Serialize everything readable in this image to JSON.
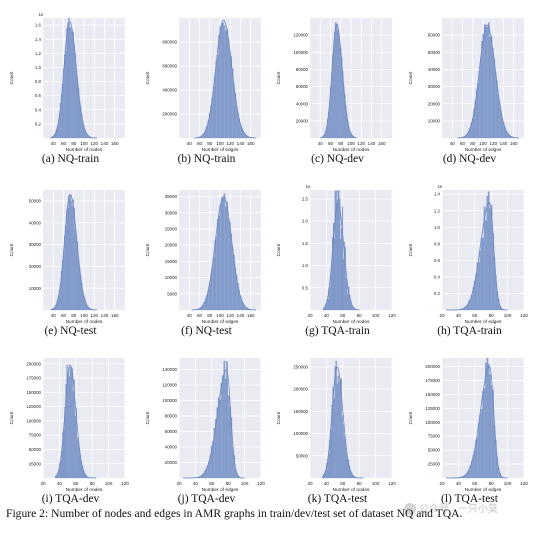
{
  "colors": {
    "plot_background": "#eaeaf2",
    "grid": "#ffffff",
    "bar_fill": "#8ba2cf",
    "bar_edge": "#6f89be",
    "kde_line": "#6a86c2",
    "text": "#222222"
  },
  "figure_caption": "Figure 2: Number of nodes and edges in AMR graphs in train/dev/test set of dataset NQ and TQA.",
  "watermark": {
    "icon": "wechat-icon",
    "text": "公众号 · 一只小莫"
  },
  "chart_data": [
    {
      "type": "histogram",
      "caption": "(a) NQ-train",
      "xlabel": "Number of nodes",
      "ylabel": "Count",
      "xlim": [
        20,
        180
      ],
      "ylim": [
        0,
        1.7
      ],
      "xticks": [
        "40",
        "60",
        "80",
        "100",
        "120",
        "140",
        "160"
      ],
      "yticks": [
        "0.2",
        "0.4",
        "0.6",
        "0.8",
        "1.0",
        "1.2",
        "1.4",
        "1.6"
      ],
      "offset_label": "1e",
      "peak_x": 72,
      "spread_left": 11,
      "spread_right": 13,
      "peak_y": 1.65,
      "x_range": [
        35,
        125
      ],
      "bins": 44,
      "bar_noise": 0.07
    },
    {
      "type": "histogram",
      "caption": "(b) NQ-train",
      "xlabel": "Number of edges",
      "ylabel": "Count",
      "xlim": [
        20,
        180
      ],
      "ylim": [
        0,
        1000000
      ],
      "xticks": [
        "40",
        "60",
        "80",
        "100",
        "120",
        "140",
        "160"
      ],
      "yticks": [
        "200000",
        "400000",
        "600000",
        "800000"
      ],
      "offset_label": "",
      "peak_x": 107,
      "spread_left": 15,
      "spread_right": 16,
      "peak_y": 980000,
      "x_range": [
        50,
        170
      ],
      "bins": 46,
      "bar_noise": 0.07
    },
    {
      "type": "histogram",
      "caption": "(c) NQ-dev",
      "xlabel": "Number of nodes",
      "ylabel": "Count",
      "xlim": [
        20,
        180
      ],
      "ylim": [
        0,
        140000
      ],
      "xticks": [
        "40",
        "60",
        "80",
        "100",
        "120",
        "140",
        "160"
      ],
      "yticks": [
        "20000",
        "40000",
        "60000",
        "80000",
        "100000",
        "120000"
      ],
      "offset_label": "",
      "peak_x": 72,
      "spread_left": 9,
      "spread_right": 11,
      "peak_y": 133000,
      "x_range": [
        40,
        110
      ],
      "bins": 36,
      "bar_noise": 0.06
    },
    {
      "type": "histogram",
      "caption": "(d) NQ-dev",
      "xlabel": "Number of edges",
      "ylabel": "Count",
      "xlim": [
        20,
        180
      ],
      "ylim": [
        0,
        70000
      ],
      "xticks": [
        "40",
        "60",
        "80",
        "100",
        "120",
        "140",
        "160"
      ],
      "yticks": [
        "10000",
        "20000",
        "30000",
        "40000",
        "50000",
        "60000"
      ],
      "offset_label": "",
      "peak_x": 108,
      "spread_left": 15,
      "spread_right": 16,
      "peak_y": 66000,
      "x_range": [
        50,
        170
      ],
      "bins": 46,
      "bar_noise": 0.07
    },
    {
      "type": "histogram",
      "caption": "(e) NQ-test",
      "xlabel": "Number of nodes",
      "ylabel": "Count",
      "xlim": [
        20,
        180
      ],
      "ylim": [
        0,
        55000
      ],
      "xticks": [
        "40",
        "60",
        "80",
        "100",
        "120",
        "140",
        "160"
      ],
      "yticks": [
        "10000",
        "20000",
        "30000",
        "40000",
        "50000"
      ],
      "offset_label": "",
      "peak_x": 73,
      "spread_left": 11,
      "spread_right": 13,
      "peak_y": 53000,
      "x_range": [
        35,
        125
      ],
      "bins": 44,
      "bar_noise": 0.07
    },
    {
      "type": "histogram",
      "caption": "(f) NQ-test",
      "xlabel": "Number of edges",
      "ylabel": "Count",
      "xlim": [
        20,
        180
      ],
      "ylim": [
        0,
        37000
      ],
      "xticks": [
        "40",
        "60",
        "80",
        "100",
        "120",
        "140",
        "160"
      ],
      "yticks": [
        "5000",
        "10000",
        "15000",
        "20000",
        "25000",
        "30000",
        "35000"
      ],
      "offset_label": "",
      "peak_x": 107,
      "spread_left": 16,
      "spread_right": 16,
      "peak_y": 35000,
      "x_range": [
        45,
        170
      ],
      "bins": 48,
      "bar_noise": 0.07
    },
    {
      "type": "histogram",
      "caption": "(g) TQA-train",
      "xlabel": "Number of nodes",
      "ylabel": "Count",
      "xlim": [
        20,
        120
      ],
      "ylim": [
        0,
        2.7
      ],
      "xticks": [
        "20",
        "40",
        "60",
        "80",
        "100",
        "120"
      ],
      "yticks": [
        "0.5",
        "1.0",
        "1.5",
        "2.0",
        "2.5"
      ],
      "offset_label": "1e",
      "peak_x": 54,
      "spread_left": 6,
      "spread_right": 7,
      "peak_y": 2.4,
      "x_range": [
        36,
        80
      ],
      "bins": 40,
      "bar_noise": 0.35
    },
    {
      "type": "histogram",
      "caption": "(h) TQA-train",
      "xlabel": "Number of edges",
      "ylabel": "Count",
      "xlim": [
        20,
        120
      ],
      "ylim": [
        0,
        1.45
      ],
      "xticks": [
        "20",
        "40",
        "60",
        "80",
        "100",
        "120"
      ],
      "yticks": [
        "0.2",
        "0.4",
        "0.6",
        "0.8",
        "1.0",
        "1.2",
        "1.4"
      ],
      "offset_label": "1e",
      "peak_x": 78,
      "spread_left": 11,
      "spread_right": 5,
      "peak_y": 1.3,
      "x_range": [
        25,
        100
      ],
      "bins": 44,
      "bar_noise": 0.15
    },
    {
      "type": "histogram",
      "caption": "(i) TQA-dev",
      "xlabel": "Number of nodes",
      "ylabel": "Count",
      "xlim": [
        20,
        120
      ],
      "ylim": [
        0,
        210000
      ],
      "xticks": [
        "20",
        "40",
        "60",
        "80",
        "100",
        "120"
      ],
      "yticks": [
        "25000",
        "50000",
        "75000",
        "100000",
        "125000",
        "150000",
        "175000",
        "200000"
      ],
      "offset_label": "",
      "peak_x": 53,
      "spread_left": 6,
      "spread_right": 7,
      "peak_y": 198000,
      "x_range": [
        35,
        85
      ],
      "bins": 40,
      "bar_noise": 0.22
    },
    {
      "type": "histogram",
      "caption": "(j) TQA-dev",
      "xlabel": "Number of edges",
      "ylabel": "Count",
      "xlim": [
        20,
        120
      ],
      "ylim": [
        0,
        155000
      ],
      "xticks": [
        "20",
        "40",
        "60",
        "80",
        "100",
        "120"
      ],
      "yticks": [
        "20000",
        "40000",
        "60000",
        "80000",
        "100000",
        "120000",
        "140000"
      ],
      "offset_label": "",
      "peak_x": 78,
      "spread_left": 11,
      "spread_right": 5,
      "peak_y": 140000,
      "x_range": [
        25,
        100
      ],
      "bins": 44,
      "bar_noise": 0.15
    },
    {
      "type": "histogram",
      "caption": "(k) TQA-test",
      "xlabel": "Number of nodes",
      "ylabel": "Count",
      "xlim": [
        20,
        120
      ],
      "ylim": [
        0,
        270000
      ],
      "xticks": [
        "20",
        "40",
        "60",
        "80",
        "100",
        "120"
      ],
      "yticks": [
        "50000",
        "100000",
        "150000",
        "200000",
        "250000"
      ],
      "offset_label": "",
      "peak_x": 53,
      "spread_left": 6,
      "spread_right": 7,
      "peak_y": 250000,
      "x_range": [
        35,
        85
      ],
      "bins": 40,
      "bar_noise": 0.18
    },
    {
      "type": "histogram",
      "caption": "(l) TQA-test",
      "xlabel": "Number of edges",
      "ylabel": "Count",
      "xlim": [
        20,
        120
      ],
      "ylim": [
        0,
        215000
      ],
      "xticks": [
        "20",
        "40",
        "60",
        "80",
        "100",
        "120"
      ],
      "yticks": [
        "25000",
        "50000",
        "75000",
        "100000",
        "125000",
        "150000",
        "175000",
        "200000"
      ],
      "offset_label": "",
      "peak_x": 78,
      "spread_left": 11,
      "spread_right": 5,
      "peak_y": 200000,
      "x_range": [
        25,
        100
      ],
      "bins": 44,
      "bar_noise": 0.12
    }
  ]
}
